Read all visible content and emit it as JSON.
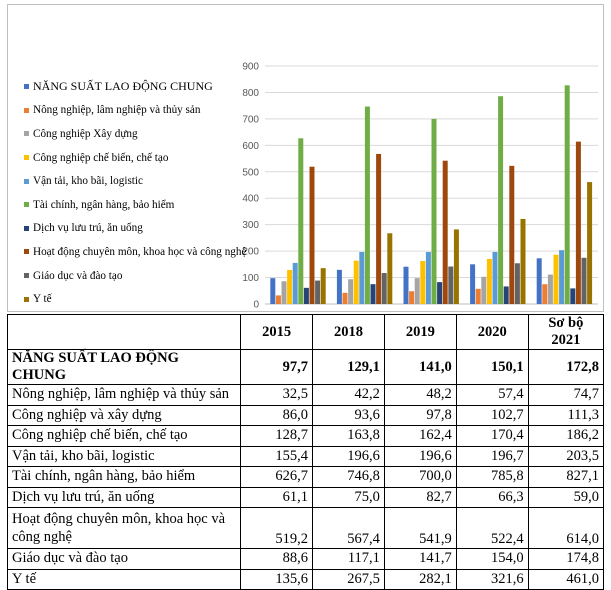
{
  "chart_data": {
    "type": "bar",
    "categories": [
      "2015",
      "2018",
      "2019",
      "2020",
      "Sơ bộ 2021"
    ],
    "ylim": [
      0,
      900
    ],
    "yticks": [
      0,
      100,
      200,
      300,
      400,
      500,
      600,
      700,
      800,
      900
    ],
    "grid": true,
    "legend_position": "left",
    "x_tick_labels_shown": false,
    "series": [
      {
        "name": "NĂNG SUẤT LAO ĐỘNG CHUNG",
        "color": "#4472C4",
        "values": [
          97.7,
          129.1,
          141.0,
          150.1,
          172.8
        ]
      },
      {
        "name": "Nông nghiệp, lâm nghiệp và thủy sản",
        "color": "#ED7D31",
        "values": [
          32.5,
          42.2,
          48.2,
          57.4,
          74.7
        ]
      },
      {
        "name": "Công nghiệp Xây dựng",
        "color": "#A5A5A5",
        "values": [
          86.0,
          93.6,
          97.8,
          102.7,
          111.3
        ]
      },
      {
        "name": "Công nghiệp chế biến, chế tạo",
        "color": "#FFC000",
        "values": [
          128.7,
          163.8,
          162.4,
          170.4,
          186.2
        ]
      },
      {
        "name": "Vận tải, kho bãi, logistic",
        "color": "#5B9BD5",
        "values": [
          155.4,
          196.6,
          196.6,
          196.7,
          203.5
        ]
      },
      {
        "name": "Tài chính, ngân hàng, bảo hiểm",
        "color": "#70AD47",
        "values": [
          626.7,
          746.8,
          700.0,
          785.8,
          827.1
        ]
      },
      {
        "name": "Dịch vụ lưu trú, ăn uống",
        "color": "#264478",
        "values": [
          61.1,
          75.0,
          82.7,
          66.3,
          59.0
        ]
      },
      {
        "name": "Hoạt động chuyên môn, khoa học và công nghệ",
        "color": "#9E480E",
        "values": [
          519.2,
          567.4,
          541.9,
          522.4,
          614.0
        ]
      },
      {
        "name": "Giáo dục và đào tạo",
        "color": "#636363",
        "values": [
          88.6,
          117.1,
          141.7,
          154.0,
          174.8
        ]
      },
      {
        "name": "Y tế",
        "color": "#997300",
        "values": [
          135.6,
          267.5,
          282.1,
          321.6,
          461.0
        ]
      }
    ]
  },
  "table": {
    "headers": [
      "",
      "2015",
      "2018",
      "2019",
      "2020",
      "Sơ bộ 2021"
    ],
    "rows": [
      {
        "label": "NĂNG SUẤT LAO ĐỘNG CHUNG",
        "values": [
          "97,7",
          "129,1",
          "141,0",
          "150,1",
          "172,8"
        ]
      },
      {
        "label": "Nông nghiệp, lâm nghiệp và thủy sản",
        "values": [
          "32,5",
          "42,2",
          "48,2",
          "57,4",
          "74,7"
        ]
      },
      {
        "label": "Công nghiệp và xây dựng",
        "values": [
          "86,0",
          "93,6",
          "97,8",
          "102,7",
          "111,3"
        ]
      },
      {
        "label": "Công nghiệp chế biến, chế tạo",
        "values": [
          "128,7",
          "163,8",
          "162,4",
          "170,4",
          "186,2"
        ]
      },
      {
        "label": "Vận tải, kho bãi, logistic",
        "values": [
          "155,4",
          "196,6",
          "196,6",
          "196,7",
          "203,5"
        ]
      },
      {
        "label": "Tài chính, ngân hàng, bảo hiểm",
        "values": [
          "626,7",
          "746,8",
          "700,0",
          "785,8",
          "827,1"
        ]
      },
      {
        "label": "Dịch vụ lưu trú, ăn uống",
        "values": [
          "61,1",
          "75,0",
          "82,7",
          "66,3",
          "59,0"
        ]
      },
      {
        "label": "Hoạt động chuyên môn, khoa học và công nghệ",
        "values": [
          "519,2",
          "567,4",
          "541,9",
          "522,4",
          "614,0"
        ]
      },
      {
        "label": "Giáo dục và đào tạo",
        "values": [
          "88,6",
          "117,1",
          "141,7",
          "154,0",
          "174,8"
        ]
      },
      {
        "label": "Y tế",
        "values": [
          "135,6",
          "267,5",
          "282,1",
          "321,6",
          "461,0"
        ]
      }
    ]
  }
}
